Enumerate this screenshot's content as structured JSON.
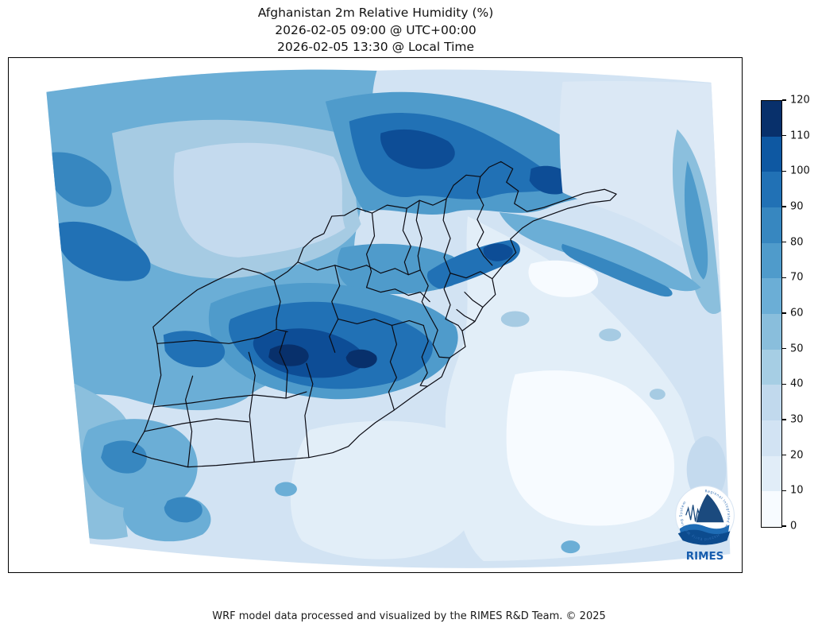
{
  "title": {
    "line1": "Afghanistan 2m Relative Humidity (%)",
    "line2": "2026-02-05 09:00 @ UTC+00:00",
    "line3": "2026-02-05 13:30 @ Local Time"
  },
  "footer": {
    "text": "WRF model data processed and visualized by the RIMES R&D Team. © 2025"
  },
  "colorbar": {
    "min": 0,
    "max": 120,
    "step": 10,
    "ticks": [
      0,
      10,
      20,
      30,
      40,
      50,
      60,
      70,
      80,
      90,
      100,
      110,
      120
    ],
    "colors_bottom_to_top": [
      "#f7fbff",
      "#e1edf8",
      "#d2e3f3",
      "#c1d9ed",
      "#a6cee4",
      "#89bedc",
      "#6baed6",
      "#4f9bcb",
      "#3787c0",
      "#2171b5",
      "#0e58a2",
      "#08306b"
    ]
  },
  "logo": {
    "name": "RIMES",
    "ring_text": "Regional Integrated Multi-Hazard Early Warning System"
  },
  "chart_data": {
    "type": "heatmap",
    "title": "Afghanistan 2m Relative Humidity (%)",
    "variable": "2m Relative Humidity",
    "units": "%",
    "valid_time_utc": "2026-02-05 09:00 @ UTC+00:00",
    "valid_time_local": "2026-02-05 13:30 @ Local Time",
    "colormap": "Blues (discrete, 10 % bins)",
    "colorbar_range": [
      0,
      120
    ],
    "colorbar_ticks": [
      0,
      10,
      20,
      30,
      40,
      50,
      60,
      70,
      80,
      90,
      100,
      110,
      120
    ],
    "overlay": "Afghanistan province boundaries (black lines)",
    "legend_position": "right",
    "approx_regional_values_pct": {
      "northwest_quadrant": "50-80",
      "northern_mountain_band": "70-110",
      "central_highlands_core": "90-120",
      "northeast_and_east_lowlands": "0-30",
      "southwest_deserts": "20-40",
      "southwest_scattered_cells": "60-90"
    }
  }
}
